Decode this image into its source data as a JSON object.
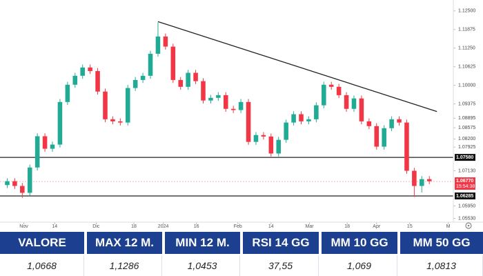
{
  "chart_data": {
    "type": "candlestick",
    "x": [
      0,
      1,
      2,
      3,
      4,
      5,
      6,
      7,
      8,
      9,
      10,
      11,
      12,
      13,
      14,
      15,
      16,
      17,
      18,
      19,
      20,
      21,
      22,
      23,
      24,
      25,
      26,
      27,
      28,
      29,
      30,
      31,
      32,
      33,
      34,
      35,
      36,
      37,
      38,
      39,
      40,
      41,
      42,
      43,
      44,
      45,
      46,
      47,
      48,
      49,
      50,
      51,
      52,
      53,
      54,
      55,
      56
    ],
    "open": [
      1.0665,
      1.0678,
      1.0662,
      1.0639,
      1.0724,
      1.0829,
      1.0787,
      1.0801,
      1.0944,
      1.1002,
      1.1032,
      1.106,
      1.1048,
      1.0979,
      1.0886,
      1.0879,
      1.0875,
      1.0991,
      1.1018,
      1.1032,
      1.1106,
      1.1164,
      1.113,
      1.1018,
      1.0995,
      1.1042,
      1.1014,
      1.0949,
      1.0958,
      1.0967,
      1.0921,
      1.0917,
      1.0944,
      1.081,
      1.0833,
      1.0828,
      1.0771,
      1.0817,
      1.0875,
      1.0903,
      1.0879,
      1.0886,
      1.0933,
      1.1002,
      1.0995,
      1.0967,
      1.0921,
      1.0956,
      1.0879,
      1.0863,
      1.0794,
      1.0856,
      1.0886,
      1.0875,
      1.0713,
      1.0662,
      1.0685
    ],
    "high": [
      1.0688,
      1.0688,
      1.0672,
      1.0734,
      1.0839,
      1.0839,
      1.0811,
      1.0954,
      1.1012,
      1.1042,
      1.107,
      1.107,
      1.1058,
      1.0989,
      1.0896,
      1.0889,
      1.1001,
      1.1028,
      1.1042,
      1.1116,
      1.1211,
      1.1174,
      1.114,
      1.1028,
      1.1052,
      1.1052,
      1.1024,
      1.0968,
      1.0977,
      1.0977,
      1.0931,
      1.0954,
      1.0954,
      1.0843,
      1.0843,
      1.0838,
      1.0827,
      1.0885,
      1.0913,
      1.0913,
      1.0896,
      1.0943,
      1.1012,
      1.1012,
      1.1005,
      1.0977,
      1.0966,
      1.0966,
      1.0889,
      1.0873,
      1.0866,
      1.0896,
      1.0896,
      1.0885,
      1.0723,
      1.0695,
      1.0695
    ],
    "low": [
      1.0655,
      1.0652,
      1.0622,
      1.0629,
      1.0714,
      1.0777,
      1.0777,
      1.0791,
      1.0934,
      1.0992,
      1.1022,
      1.1038,
      1.0969,
      1.0876,
      1.0869,
      1.0865,
      1.0865,
      1.0981,
      1.1008,
      1.1022,
      1.1096,
      1.112,
      1.1008,
      1.0985,
      1.0985,
      1.1004,
      1.0939,
      1.0939,
      1.0948,
      1.0911,
      1.0907,
      1.0907,
      1.08,
      1.08,
      1.0818,
      1.0761,
      1.0761,
      1.0807,
      1.0865,
      1.0869,
      1.0869,
      1.0876,
      1.0923,
      1.0985,
      1.0957,
      1.0911,
      1.0911,
      1.0869,
      1.0853,
      1.0784,
      1.0784,
      1.0846,
      1.0865,
      1.0703,
      1.0625,
      1.064,
      1.0668
    ],
    "close": [
      1.0678,
      1.0662,
      1.0639,
      1.0724,
      1.0829,
      1.0787,
      1.0801,
      1.0944,
      1.1002,
      1.1032,
      1.106,
      1.1048,
      1.0979,
      1.0886,
      1.0879,
      1.0875,
      1.0991,
      1.1018,
      1.1032,
      1.1106,
      1.1164,
      1.113,
      1.1018,
      1.0995,
      1.1042,
      1.1014,
      1.0949,
      1.0958,
      1.0967,
      1.0921,
      1.0917,
      1.0944,
      1.081,
      1.0833,
      1.0828,
      1.0771,
      1.0817,
      1.0875,
      1.0903,
      1.0879,
      1.0886,
      1.0933,
      1.1002,
      1.0995,
      1.0967,
      1.0921,
      1.0956,
      1.0879,
      1.0863,
      1.0794,
      1.0856,
      1.0886,
      1.0875,
      1.0713,
      1.0662,
      1.0685,
      1.0678
    ],
    "up_color": "#22ab94",
    "down_color": "#f23645",
    "xlim": [
      -0.5,
      59
    ],
    "ylim": [
      1.0545,
      1.1275
    ],
    "xticks": [
      {
        "value": 2.2,
        "label": "Nov"
      },
      {
        "value": 6.3,
        "label": "14"
      },
      {
        "value": 11.8,
        "label": "Dic"
      },
      {
        "value": 16.8,
        "label": "18"
      },
      {
        "value": 20.7,
        "label": "2024"
      },
      {
        "value": 25.1,
        "label": "16"
      },
      {
        "value": 30.6,
        "label": "Feb"
      },
      {
        "value": 35,
        "label": "14"
      },
      {
        "value": 40.1,
        "label": "Mar"
      },
      {
        "value": 45.1,
        "label": "18"
      },
      {
        "value": 49,
        "label": "Apr"
      },
      {
        "value": 53.4,
        "label": "15"
      },
      {
        "value": 58.5,
        "label": "M"
      }
    ],
    "yticks": [
      {
        "value": 1.125,
        "label": "1.12500"
      },
      {
        "value": 1.11875,
        "label": "1.11875"
      },
      {
        "value": 1.1125,
        "label": "1.11250"
      },
      {
        "value": 1.10625,
        "label": "1.10625"
      },
      {
        "value": 1.1,
        "label": "1.10000"
      },
      {
        "value": 1.09375,
        "label": "1.09375"
      },
      {
        "value": 1.08895,
        "label": "1.08895"
      },
      {
        "value": 1.08575,
        "label": "1.08575"
      },
      {
        "value": 1.082,
        "label": "1.08200"
      },
      {
        "value": 1.07925,
        "label": "1.07925"
      },
      {
        "value": 1.0713,
        "label": "1.07130"
      },
      {
        "value": 1.0595,
        "label": "1.05950"
      },
      {
        "value": 1.0553,
        "label": "1.05530"
      }
    ],
    "trendline": {
      "x": [
        20,
        57
      ],
      "y": [
        1.1214,
        1.0912
      ]
    },
    "levels": [
      {
        "value": 1.0758,
        "label": "1.07580"
      },
      {
        "value": 1.06285,
        "label": "1.06285"
      }
    ],
    "last_price": {
      "value": 1.0677,
      "label": "1.06770",
      "time": "15:54:38"
    }
  },
  "table": {
    "headers": [
      "VALORE",
      "MAX 12 M.",
      "MIN 12 M.",
      "RSI 14 GG",
      "MM 10 GG",
      "MM 50 GG"
    ],
    "values": [
      "1,0668",
      "1,1286",
      "1,0453",
      "37,55",
      "1,069",
      "1,0813"
    ]
  }
}
